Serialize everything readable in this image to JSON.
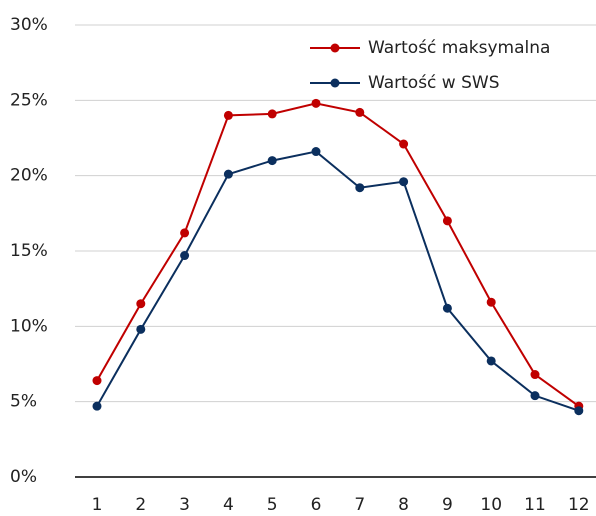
{
  "chart_data": {
    "type": "line",
    "categories": [
      1,
      2,
      3,
      4,
      5,
      6,
      7,
      8,
      9,
      10,
      11,
      12
    ],
    "series": [
      {
        "name": "Wartość maksymalna",
        "color": "#c00000",
        "values": [
          6.4,
          11.5,
          16.2,
          24.0,
          24.1,
          24.8,
          24.2,
          22.1,
          17.0,
          11.6,
          6.8,
          4.7
        ]
      },
      {
        "name": "Wartość w SWS",
        "color": "#0b2f5e",
        "values": [
          4.7,
          9.8,
          14.7,
          20.1,
          21.0,
          21.6,
          19.2,
          19.6,
          11.2,
          7.7,
          5.4,
          4.4
        ]
      }
    ],
    "ylim": [
      0,
      30
    ],
    "yticks": [
      {
        "value": 0,
        "label": "0%"
      },
      {
        "value": 5,
        "label": "5%"
      },
      {
        "value": 10,
        "label": "10%"
      },
      {
        "value": 15,
        "label": "15%"
      },
      {
        "value": 20,
        "label": "20%"
      },
      {
        "value": 25,
        "label": "25%"
      },
      {
        "value": 30,
        "label": "30%"
      }
    ],
    "grid": true,
    "legend": "upper right"
  }
}
